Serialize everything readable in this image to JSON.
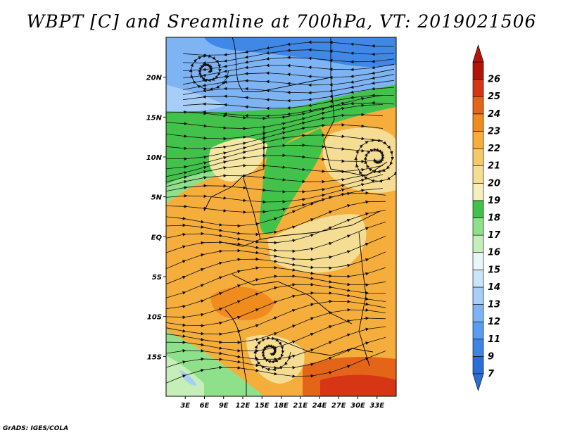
{
  "title": "WBPT [C] and Sreamline at 700hPa, VT: 2019021506",
  "footer": "GrADS: IGES/COLA",
  "map": {
    "lon_range": [
      0,
      36
    ],
    "lat_range": [
      -20,
      25
    ],
    "lon_ticks": [
      "3E",
      "6E",
      "9E",
      "12E",
      "15E",
      "18E",
      "21E",
      "24E",
      "27E",
      "30E",
      "33E"
    ],
    "lat_ticks": [
      "20N",
      "15N",
      "10N",
      "5N",
      "EQ",
      "5S",
      "10S",
      "15S"
    ]
  },
  "colorbar": {
    "labels": [
      "7",
      "9",
      "11",
      "12",
      "13",
      "14",
      "15",
      "16",
      "17",
      "18",
      "19",
      "20",
      "21",
      "22",
      "23",
      "24",
      "25",
      "26"
    ],
    "colors": [
      "#2a6fd8",
      "#3c85e6",
      "#5a9cf0",
      "#7eb4f4",
      "#a6cef8",
      "#cbe4fa",
      "#e9f6f8",
      "#c6eeb8",
      "#8fe08a",
      "#42c24a",
      "#f6eebc",
      "#f6dd94",
      "#f7c86a",
      "#f6ad3a",
      "#f08c1e",
      "#e56518",
      "#d63616",
      "#b41408"
    ]
  }
}
